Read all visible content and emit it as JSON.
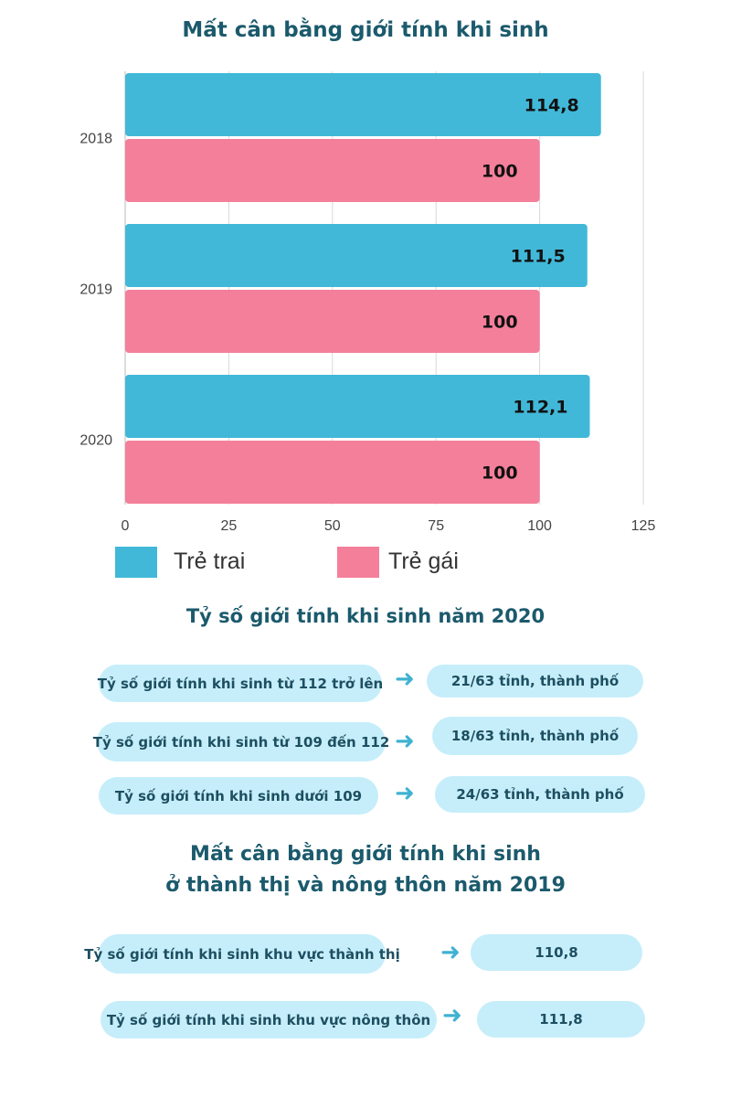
{
  "chart_data": {
    "type": "bar",
    "orientation": "horizontal",
    "title": "Mất cân bằng giới tính khi sinh",
    "categories": [
      "2018",
      "2019",
      "2020"
    ],
    "series": [
      {
        "name": "Trẻ trai",
        "color": "#41b8d8",
        "values": [
          114.8,
          111.5,
          112.1
        ],
        "labels": [
          "114,8",
          "111,5",
          "112,1"
        ]
      },
      {
        "name": "Trẻ gái",
        "color": "#f47f9a",
        "values": [
          100,
          100,
          100
        ],
        "labels": [
          "100",
          "100",
          "100"
        ]
      }
    ],
    "xlim": [
      0,
      125
    ],
    "xticks": [
      "0",
      "25",
      "50",
      "75",
      "100",
      "125"
    ],
    "grid": true,
    "legend": "bottom"
  },
  "section2": {
    "title": "Tỷ số giới tính khi sinh năm 2020",
    "rows": [
      {
        "label": "Tỷ số giới tính khi sinh từ 112 trở lên",
        "value": "21/63 tỉnh, thành phố"
      },
      {
        "label": "Tỷ số giới tính khi sinh từ 109 đến 112",
        "value": "18/63 tỉnh, thành phố"
      },
      {
        "label": "Tỷ số giới tính khi sinh dưới 109",
        "value": "24/63 tỉnh, thành phố"
      }
    ]
  },
  "section3": {
    "title_line1": "Mất cân bằng giới tính khi sinh",
    "title_line2": "ở thành thị và nông thôn năm 2019",
    "rows": [
      {
        "label": "Tỷ số giới tính khi sinh khu vực thành thị",
        "value": "110,8"
      },
      {
        "label": "Tỷ số giới tính khi sinh khu vực nông thôn",
        "value": "111,8"
      }
    ]
  },
  "arrow_icon": "right-arrow"
}
